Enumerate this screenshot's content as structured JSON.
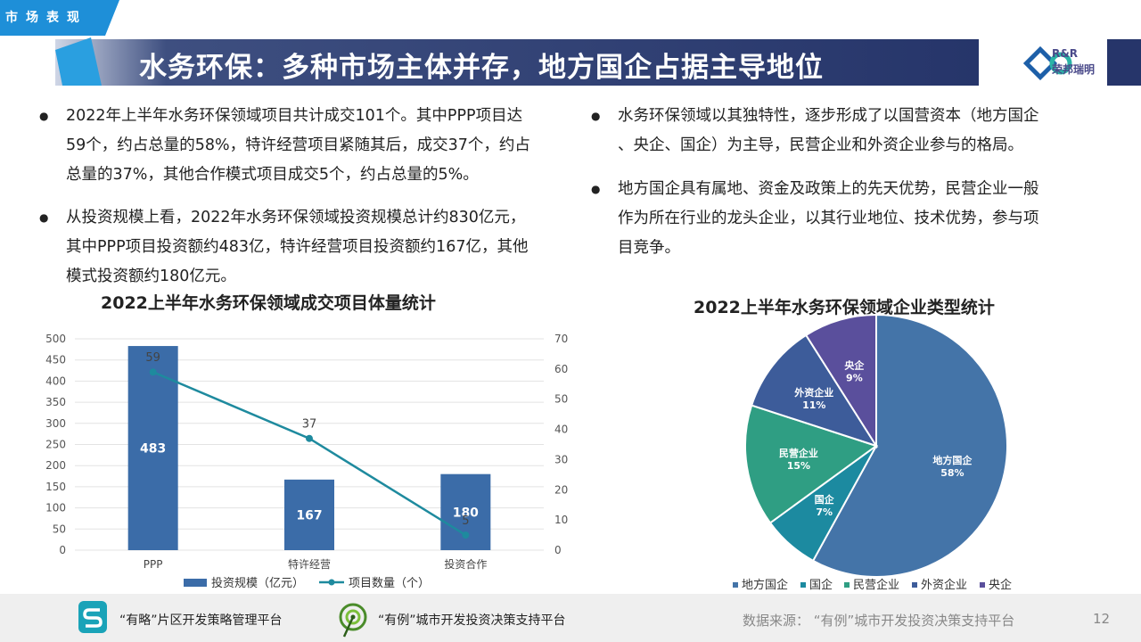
{
  "header": {
    "section_tag": "市场表现",
    "title": "水务环保：多种市场主体并存，地方国企占据主导地位",
    "logo_rr": "R&R",
    "logo_cn": "荣邦瑞明"
  },
  "left_bullets": [
    {
      "lines": [
        "2022年上半年水务环保领域项目共计成交101个。其中PPP项目达",
        "59个，约占总量的58%，特许经营项目紧随其后，成交37个，约占",
        "总量的37%，其他合作模式项目成交5个，约占总量的5%。"
      ]
    },
    {
      "lines": [
        "从投资规模上看，2022年水务环保领域投资规模总计约830亿元，",
        "其中PPP项目投资额约483亿，特许经营项目投资额约167亿，其他",
        "模式投资额约180亿元。"
      ]
    }
  ],
  "right_bullets": [
    {
      "lines": [
        "水务环保领域以其独特性，逐步形成了以国营资本（地方国企",
        "、央企、国企）为主导，民营企业和外资企业参与的格局。"
      ]
    },
    {
      "lines": [
        "地方国企具有属地、资金及政策上的先天优势，民营企业一般",
        "作为所在行业的龙头企业，以其行业地位、技术优势，参与项",
        "目竞争。"
      ]
    }
  ],
  "chart_data": [
    {
      "type": "bar",
      "title": "2022上半年水务环保领域成交项目体量统计",
      "categories": [
        "PPP",
        "特许经营",
        "投资合作"
      ],
      "series": [
        {
          "name": "投资规模（亿元）",
          "type": "bar",
          "axis": "left",
          "values": [
            483,
            167,
            180
          ],
          "color": "#3b6ca8"
        },
        {
          "name": "项目数量（个）",
          "type": "line",
          "axis": "right",
          "values": [
            59,
            37,
            5
          ],
          "color": "#1e8a9e"
        }
      ],
      "ylim_left": [
        0,
        500
      ],
      "ylim_right": [
        0,
        70
      ],
      "left_ticks": [
        0,
        50,
        100,
        150,
        200,
        250,
        300,
        350,
        400,
        450,
        500
      ],
      "right_ticks": [
        0,
        10,
        20,
        30,
        40,
        50,
        60,
        70
      ],
      "legend_position": "bottom",
      "grid": true
    },
    {
      "type": "pie",
      "title": "2022上半年水务环保领域企业类型统计",
      "slices": [
        {
          "label": "地方国企",
          "value": 58,
          "pct_label": "58%",
          "color": "#4474a8"
        },
        {
          "label": "国企",
          "value": 7,
          "pct_label": "7%",
          "color": "#1c8aa0"
        },
        {
          "label": "民营企业",
          "value": 15,
          "pct_label": "15%",
          "color": "#2f9e83"
        },
        {
          "label": "外资企业",
          "value": 11,
          "pct_label": "11%",
          "color": "#3d5c9a"
        },
        {
          "label": "央企",
          "value": 9,
          "pct_label": "9%",
          "color": "#5a4f9c"
        }
      ],
      "legend_position": "bottom"
    }
  ],
  "footer": {
    "platform1": "“有略”片区开发策略管理平台",
    "platform2": "“有例”城市开发投资决策支持平台",
    "source": "数据来源：  “有例”城市开发投资决策支持平台",
    "page_number": "12"
  },
  "colors": {
    "title_bar": "#26356a",
    "accent": "#3b6ca8",
    "tag": "#1e8fd8"
  }
}
